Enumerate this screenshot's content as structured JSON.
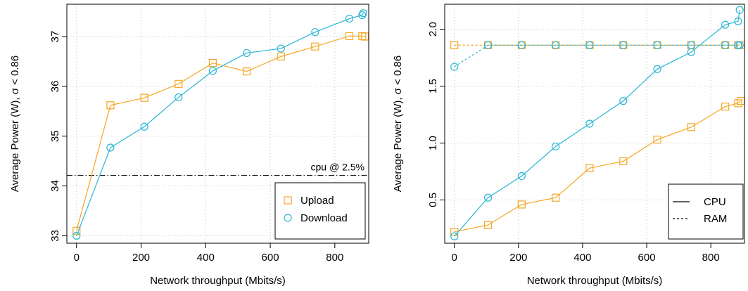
{
  "chart_data": [
    {
      "type": "line",
      "title": "",
      "xlabel": "Network throughput (Mbits/s)",
      "ylabel": "Average Power (W), σ < 0.86",
      "xlim": [
        -30,
        905
      ],
      "ylim": [
        32.85,
        37.65
      ],
      "xticks": [
        "0",
        "200",
        "400",
        "600",
        "800"
      ],
      "yticks": [
        "33",
        "34",
        "35",
        "36",
        "37"
      ],
      "grid": true,
      "legend_position": "bottom-right",
      "series": [
        {
          "name": "Upload",
          "marker": "square",
          "color": "#F5A623",
          "linestyle": "solid",
          "points": [
            [
              0,
              33.1
            ],
            [
              105,
              35.62
            ],
            [
              210,
              35.77
            ],
            [
              316,
              36.05
            ],
            [
              422,
              36.47
            ],
            [
              527,
              36.3
            ],
            [
              633,
              36.6
            ],
            [
              739,
              36.8
            ],
            [
              845,
              37.01
            ],
            [
              885,
              37.01
            ],
            [
              893,
              37.0
            ]
          ]
        },
        {
          "name": "Download",
          "marker": "circle",
          "color": "#29B6D6",
          "linestyle": "solid",
          "points": [
            [
              0,
              33.0
            ],
            [
              105,
              34.77
            ],
            [
              210,
              35.19
            ],
            [
              316,
              35.78
            ],
            [
              422,
              36.31
            ],
            [
              527,
              36.67
            ],
            [
              633,
              36.76
            ],
            [
              739,
              37.09
            ],
            [
              845,
              37.36
            ],
            [
              885,
              37.43
            ],
            [
              888,
              37.47
            ]
          ]
        }
      ],
      "hline": {
        "y": 34.21,
        "label": "cpu @ 2.5%",
        "linestyle": "dashdot"
      }
    },
    {
      "type": "line",
      "title": "",
      "xlabel": "Network throughput (Mbits/s)",
      "ylabel": "Average Power (W), σ < 0.86",
      "xlim": [
        -30,
        905
      ],
      "ylim": [
        0.12,
        2.22
      ],
      "xticks": [
        "0",
        "200",
        "400",
        "600",
        "800"
      ],
      "yticks": [
        "0.5",
        "1.0",
        "1.5",
        "2.0"
      ],
      "grid": true,
      "legend_position": "bottom-right",
      "legend": [
        {
          "label": "CPU",
          "linestyle": "solid"
        },
        {
          "label": "RAM",
          "linestyle": "dashed"
        }
      ],
      "series": [
        {
          "metric": "CPU",
          "direction": "Upload",
          "marker": "square",
          "color": "#F5A623",
          "linestyle": "solid",
          "points": [
            [
              0,
              0.22
            ],
            [
              105,
              0.28
            ],
            [
              210,
              0.46
            ],
            [
              316,
              0.52
            ],
            [
              422,
              0.78
            ],
            [
              527,
              0.84
            ],
            [
              633,
              1.03
            ],
            [
              739,
              1.14
            ],
            [
              845,
              1.32
            ],
            [
              885,
              1.35
            ],
            [
              893,
              1.37
            ]
          ]
        },
        {
          "metric": "CPU",
          "direction": "Download",
          "marker": "circle",
          "color": "#29B6D6",
          "linestyle": "solid",
          "points": [
            [
              0,
              0.18
            ],
            [
              105,
              0.52
            ],
            [
              210,
              0.71
            ],
            [
              316,
              0.97
            ],
            [
              422,
              1.17
            ],
            [
              527,
              1.37
            ],
            [
              633,
              1.65
            ],
            [
              739,
              1.8
            ],
            [
              845,
              2.04
            ],
            [
              885,
              2.07
            ],
            [
              890,
              2.17
            ]
          ]
        },
        {
          "metric": "RAM",
          "direction": "Upload",
          "marker": "square",
          "color": "#F5A623",
          "linestyle": "dashed",
          "points": [
            [
              0,
              1.86
            ],
            [
              105,
              1.86
            ],
            [
              210,
              1.86
            ],
            [
              316,
              1.86
            ],
            [
              422,
              1.86
            ],
            [
              527,
              1.86
            ],
            [
              633,
              1.86
            ],
            [
              739,
              1.86
            ],
            [
              845,
              1.86
            ],
            [
              885,
              1.86
            ],
            [
              893,
              1.86
            ]
          ]
        },
        {
          "metric": "RAM",
          "direction": "Download",
          "marker": "circle",
          "color": "#29B6D6",
          "linestyle": "dashed",
          "points": [
            [
              0,
              1.67
            ],
            [
              105,
              1.86
            ],
            [
              210,
              1.86
            ],
            [
              316,
              1.86
            ],
            [
              422,
              1.86
            ],
            [
              527,
              1.86
            ],
            [
              633,
              1.86
            ],
            [
              739,
              1.86
            ],
            [
              845,
              1.86
            ],
            [
              885,
              1.86
            ],
            [
              890,
              1.86
            ]
          ]
        }
      ]
    }
  ]
}
